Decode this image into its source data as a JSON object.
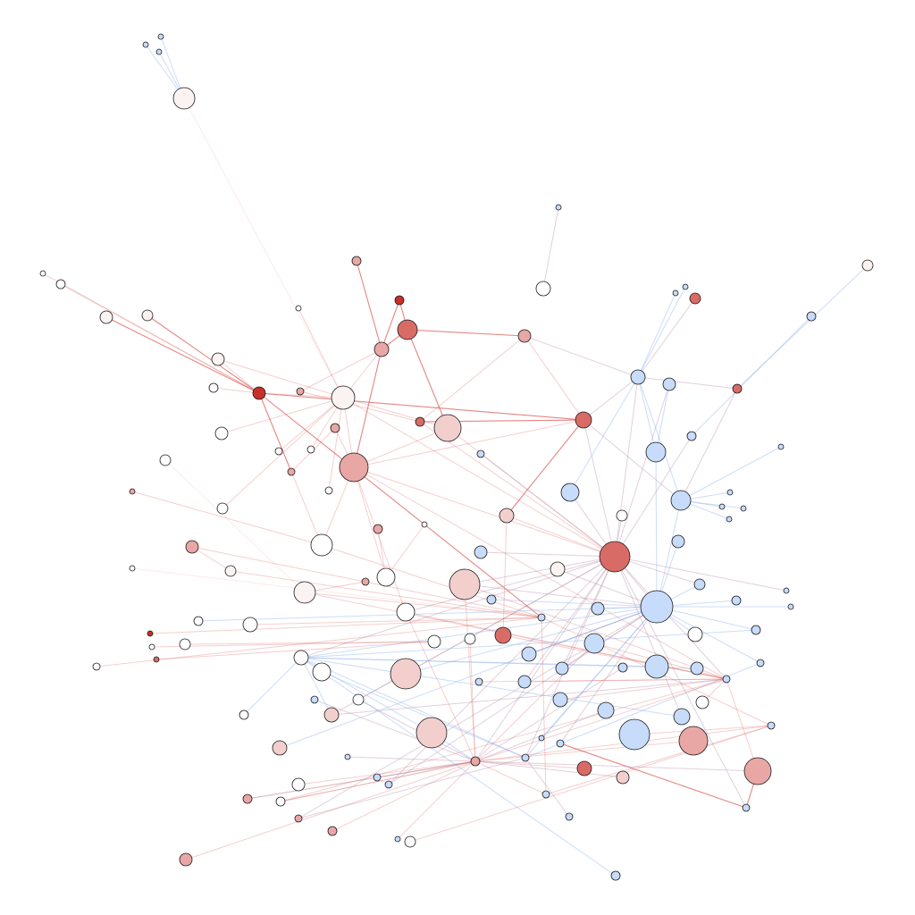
{
  "graph": {
    "type": "network",
    "background": "#ffffff",
    "node_outline_color": "#1a1a1a",
    "palette": {
      "red_strong": "#c8302b",
      "red": "#d96b66",
      "red_light": "#e8a7a5",
      "pink": "#f2cfcd",
      "pale": "#fbf3f2",
      "white": "#ffffff",
      "blue": "#c7dbfb",
      "edge_red": "#d9534f",
      "edge_blue": "#8fb2ee",
      "edge_purple": "#b48aa8"
    }
  }
}
